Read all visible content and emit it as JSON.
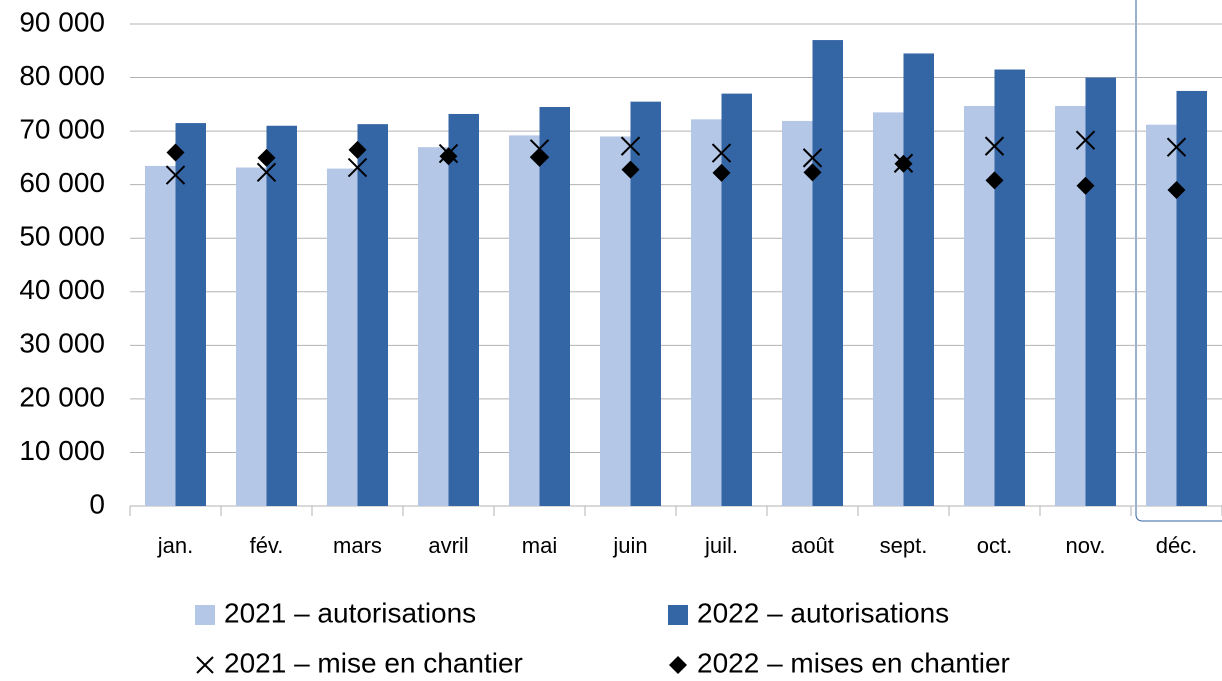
{
  "chart_data": {
    "type": "bar",
    "categories": [
      "jan.",
      "fév.",
      "mars",
      "avril",
      "mai",
      "juin",
      "juil.",
      "août",
      "sept.",
      "oct.",
      "nov.",
      "déc."
    ],
    "series": [
      {
        "name": "2021 – autorisations",
        "color": "#b4c7e7",
        "marker": "bar",
        "values": [
          63500,
          63200,
          63000,
          67000,
          69200,
          69000,
          72200,
          71900,
          73500,
          74700,
          74700,
          71200
        ]
      },
      {
        "name": "2022 – autorisations",
        "color": "#3465a4",
        "marker": "bar",
        "values": [
          71500,
          71000,
          71300,
          73200,
          74500,
          75500,
          77000,
          87000,
          84500,
          81500,
          80000,
          77500
        ]
      },
      {
        "name": "2021 – mise en chantier",
        "color": "#000000",
        "marker": "x",
        "values": [
          61800,
          62300,
          63200,
          65800,
          66700,
          67200,
          65900,
          65000,
          64000,
          67200,
          68300,
          67000
        ]
      },
      {
        "name": "2022 – mises en chantier",
        "color": "#000000",
        "marker": "diamond",
        "values": [
          66000,
          65000,
          66500,
          65300,
          65000,
          62800,
          62200,
          62300,
          63900,
          60800,
          59800,
          59000
        ]
      }
    ],
    "ylim": [
      0,
      90000
    ],
    "yticks": [
      0,
      {
        "value": 10000,
        "label": "10 000"
      },
      {
        "value": 20000,
        "label": "20 000"
      },
      {
        "value": 30000,
        "label": "30 000"
      },
      {
        "value": 40000,
        "label": "40 000"
      },
      {
        "value": 50000,
        "label": "50 000"
      },
      {
        "value": 60000,
        "label": "60 000"
      },
      {
        "value": 70000,
        "label": "70 000"
      },
      {
        "value": 80000,
        "label": "80 000"
      },
      {
        "value": 90000,
        "label": "90 000"
      }
    ],
    "grid": true,
    "legend": "bottom"
  }
}
